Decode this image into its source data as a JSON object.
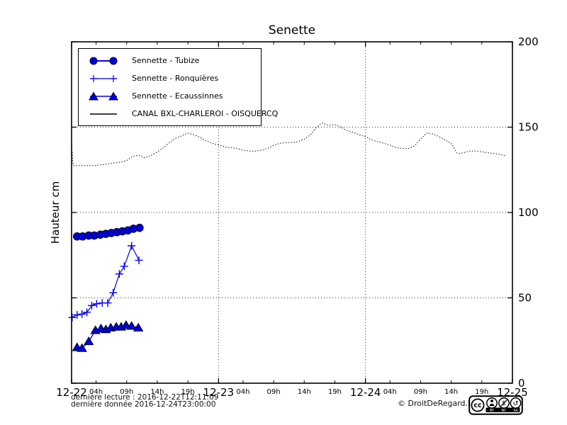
{
  "title": "Senette",
  "y_axis_label": "Hauteur cm",
  "footer": {
    "line1": "dernière lecture : 2016-12-22T12:11:09",
    "line2": "dernière donnée  2016-12-24T23:00:00",
    "copyright": "© DroitDeRegard.be"
  },
  "cc_badge": {
    "cc": "cc",
    "labels": [
      "BY",
      "NC",
      "SA"
    ]
  },
  "colors": {
    "series_blue_fill": "#0000dd",
    "series_blue_line": "#0000ee",
    "canal_black": "#000000",
    "grid": "#333333",
    "frame": "#000000"
  },
  "chart_data": {
    "type": "line",
    "title": "Senette",
    "ylabel": "Hauteur cm",
    "ylim": [
      0,
      200
    ],
    "y_ticks": [
      0,
      50,
      100,
      150,
      200
    ],
    "x_range_hours": 72,
    "grid": "dotted major gridlines, y at 50/100/150, x at day boundaries",
    "legend_position": "top-left inside frame",
    "x_days": [
      {
        "hour": 0,
        "label": "12-22"
      },
      {
        "hour": 24,
        "label": "12-23"
      },
      {
        "hour": 48,
        "label": "12-24"
      },
      {
        "hour": 72,
        "label": "12-25"
      }
    ],
    "x_hour_ticks": [
      {
        "hour": 4,
        "label": "04h"
      },
      {
        "hour": 9,
        "label": "09h"
      },
      {
        "hour": 14,
        "label": "14h"
      },
      {
        "hour": 19,
        "label": "19h"
      },
      {
        "hour": 28,
        "label": "04h"
      },
      {
        "hour": 33,
        "label": "09h"
      },
      {
        "hour": 38,
        "label": "14h"
      },
      {
        "hour": 43,
        "label": "19h"
      },
      {
        "hour": 52,
        "label": "04h"
      },
      {
        "hour": 57,
        "label": "09h"
      },
      {
        "hour": 62,
        "label": "14h"
      },
      {
        "hour": 67,
        "label": "19h"
      }
    ],
    "series": [
      {
        "name": "Sennette - Tubize",
        "marker": "circle",
        "color": "#0000dd",
        "line_width": 2,
        "points": [
          [
            0.9,
            86
          ],
          [
            1.8,
            86
          ],
          [
            2.8,
            86.5
          ],
          [
            3.7,
            86.5
          ],
          [
            4.7,
            87
          ],
          [
            5.6,
            87.5
          ],
          [
            6.5,
            88
          ],
          [
            7.4,
            88.5
          ],
          [
            8.3,
            89
          ],
          [
            9.2,
            89.5
          ],
          [
            10.1,
            90.5
          ],
          [
            11.1,
            91
          ]
        ]
      },
      {
        "name": "Sennette - Ronquières",
        "marker": "plus",
        "color": "#0000ee",
        "line_width": 1.2,
        "points": [
          [
            0.1,
            38.5
          ],
          [
            0.9,
            40
          ],
          [
            1.7,
            40.5
          ],
          [
            2.5,
            41.5
          ],
          [
            3.3,
            45.5
          ],
          [
            4.1,
            46.5
          ],
          [
            5.0,
            47
          ],
          [
            5.9,
            47
          ],
          [
            6.8,
            53
          ],
          [
            7.8,
            64
          ],
          [
            8.6,
            68.5
          ],
          [
            9.8,
            80.5
          ],
          [
            11.0,
            72
          ]
        ]
      },
      {
        "name": "Sennette - Ecaussinnes",
        "marker": "triangle",
        "color": "#0000dd",
        "line_width": 1.4,
        "points": [
          [
            0.9,
            21
          ],
          [
            1.7,
            20.5
          ],
          [
            2.8,
            24.5
          ],
          [
            3.9,
            31
          ],
          [
            4.8,
            32
          ],
          [
            5.6,
            31.5
          ],
          [
            6.4,
            32.5
          ],
          [
            7.3,
            33
          ],
          [
            8.1,
            33
          ],
          [
            8.9,
            34
          ],
          [
            9.8,
            33.5
          ],
          [
            10.9,
            32.5
          ]
        ]
      },
      {
        "name": "CANAL BXL-CHARLEROI  - OISQUERCQ",
        "marker": "none",
        "color": "#000000",
        "line_width": 1,
        "dash": "1.4,2.4",
        "points": [
          [
            0,
            140
          ],
          [
            0.25,
            127.5
          ],
          [
            1,
            127.5
          ],
          [
            2,
            127.5
          ],
          [
            3,
            127.5
          ],
          [
            4,
            127.5
          ],
          [
            5,
            128
          ],
          [
            6,
            128.5
          ],
          [
            7,
            129
          ],
          [
            8,
            129.5
          ],
          [
            9,
            130.5
          ],
          [
            10,
            133
          ],
          [
            11,
            133.5
          ],
          [
            12,
            132
          ],
          [
            13,
            133.5
          ],
          [
            14,
            135.5
          ],
          [
            15,
            138
          ],
          [
            16,
            141
          ],
          [
            17,
            143.5
          ],
          [
            18,
            145
          ],
          [
            19,
            146.5
          ],
          [
            20,
            145.5
          ],
          [
            21,
            144
          ],
          [
            22,
            142
          ],
          [
            23,
            140.5
          ],
          [
            24,
            139.5
          ],
          [
            25,
            138.5
          ],
          [
            26,
            138
          ],
          [
            27,
            137.5
          ],
          [
            28,
            136.5
          ],
          [
            29,
            136
          ],
          [
            30,
            136
          ],
          [
            31,
            136.5
          ],
          [
            32,
            137.5
          ],
          [
            33,
            139.5
          ],
          [
            34,
            140.5
          ],
          [
            35,
            141
          ],
          [
            36,
            141
          ],
          [
            37,
            141.5
          ],
          [
            38,
            143
          ],
          [
            39,
            145.5
          ],
          [
            40,
            150
          ],
          [
            41,
            152.5
          ],
          [
            42,
            151
          ],
          [
            43,
            151.5
          ],
          [
            44,
            150
          ],
          [
            45,
            148
          ],
          [
            46,
            147
          ],
          [
            47,
            145.5
          ],
          [
            48,
            144.5
          ],
          [
            49,
            142.5
          ],
          [
            50,
            141.5
          ],
          [
            51,
            140.5
          ],
          [
            52,
            139.5
          ],
          [
            53,
            138
          ],
          [
            54,
            137.5
          ],
          [
            55,
            137.5
          ],
          [
            56,
            139
          ],
          [
            57,
            143
          ],
          [
            58,
            146.5
          ],
          [
            59,
            146
          ],
          [
            60,
            144.5
          ],
          [
            61,
            142.5
          ],
          [
            62,
            140.5
          ],
          [
            63,
            134.5
          ],
          [
            64,
            135
          ],
          [
            65,
            136
          ],
          [
            66,
            136
          ],
          [
            67,
            135.5
          ],
          [
            68,
            135
          ],
          [
            69,
            134.5
          ],
          [
            70,
            134
          ],
          [
            71,
            133
          ]
        ]
      }
    ]
  }
}
